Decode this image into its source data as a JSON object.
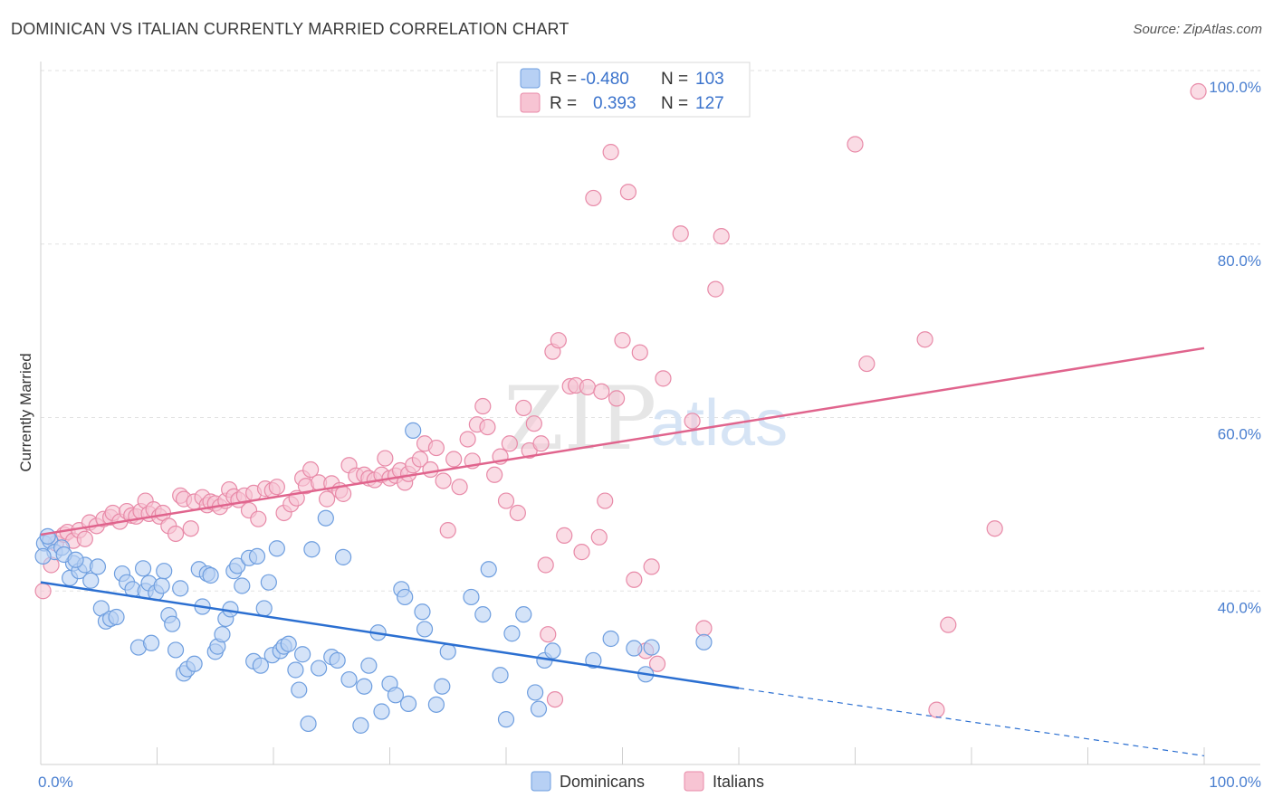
{
  "title": "DOMINICAN VS ITALIAN CURRENTLY MARRIED CORRELATION CHART",
  "source": "Source: ZipAtlas.com",
  "watermark": {
    "zip": "ZIP",
    "atlas": "atlas"
  },
  "colors": {
    "blue_fill": "#b7d0f4",
    "blue_stroke": "#6e9edf",
    "blue_line": "#2b6fd1",
    "pink_fill": "#f7c4d3",
    "pink_stroke": "#e88aa8",
    "pink_line": "#e0648d",
    "grid": "#e2e2e2",
    "tick_label": "#4a7fd0"
  },
  "legend": {
    "rows": [
      {
        "r_label": "R =",
        "r_value": "-0.480",
        "n_label": "N =",
        "n_value": "103"
      },
      {
        "r_label": "R =",
        "r_value": "0.393",
        "n_label": "N =",
        "n_value": "127"
      }
    ]
  },
  "bottom_legend": {
    "series1": "Dominicans",
    "series2": "Italians"
  },
  "chart_data": {
    "type": "scatter",
    "title": "DOMINICAN VS ITALIAN CURRENTLY MARRIED CORRELATION CHART",
    "xlabel": "",
    "ylabel": "Currently Married",
    "xlim": [
      0,
      100
    ],
    "ylim": [
      20,
      100
    ],
    "x_tick_labels": [
      "0.0%",
      "100.0%"
    ],
    "y_ticks": [
      40,
      60,
      80,
      100
    ],
    "y_tick_labels": [
      "40.0%",
      "60.0%",
      "80.0%",
      "100.0%"
    ],
    "grid": true,
    "series": [
      {
        "name": "Dominicans",
        "r": -0.48,
        "n": 103,
        "trend": {
          "x0": 0,
          "y0": 41.0,
          "x1": 60,
          "y1": 28.8,
          "dash_to_x": 100,
          "dash_to_y": 21.0
        },
        "points": [
          [
            0.3,
            45.5
          ],
          [
            0.8,
            45.8
          ],
          [
            1.2,
            44.5
          ],
          [
            1.8,
            45.0
          ],
          [
            2.5,
            41.5
          ],
          [
            2.8,
            43.2
          ],
          [
            3.3,
            42.3
          ],
          [
            3.8,
            43.0
          ],
          [
            4.3,
            41.2
          ],
          [
            4.9,
            42.8
          ],
          [
            5.2,
            38.0
          ],
          [
            5.6,
            36.5
          ],
          [
            6.0,
            36.8
          ],
          [
            6.5,
            37.0
          ],
          [
            7.0,
            42.0
          ],
          [
            7.4,
            41.0
          ],
          [
            7.9,
            40.2
          ],
          [
            8.4,
            33.5
          ],
          [
            8.8,
            42.6
          ],
          [
            9.0,
            40.0
          ],
          [
            9.3,
            40.9
          ],
          [
            9.5,
            34.0
          ],
          [
            9.9,
            39.8
          ],
          [
            10.4,
            40.6
          ],
          [
            10.6,
            42.3
          ],
          [
            11.0,
            37.2
          ],
          [
            11.3,
            36.2
          ],
          [
            11.6,
            33.2
          ],
          [
            12.0,
            40.3
          ],
          [
            12.3,
            30.5
          ],
          [
            12.6,
            31.0
          ],
          [
            13.2,
            31.6
          ],
          [
            13.6,
            42.5
          ],
          [
            13.9,
            38.2
          ],
          [
            14.3,
            42.0
          ],
          [
            14.6,
            41.8
          ],
          [
            15.0,
            33.0
          ],
          [
            15.2,
            33.6
          ],
          [
            15.6,
            35.0
          ],
          [
            15.9,
            36.8
          ],
          [
            16.3,
            37.9
          ],
          [
            16.6,
            42.3
          ],
          [
            16.9,
            42.9
          ],
          [
            17.3,
            40.6
          ],
          [
            17.9,
            43.8
          ],
          [
            18.3,
            31.9
          ],
          [
            18.6,
            44.0
          ],
          [
            18.9,
            31.4
          ],
          [
            19.2,
            38.0
          ],
          [
            19.6,
            41.0
          ],
          [
            19.9,
            32.6
          ],
          [
            20.3,
            44.9
          ],
          [
            20.6,
            33.1
          ],
          [
            20.9,
            33.6
          ],
          [
            21.3,
            33.9
          ],
          [
            21.9,
            30.9
          ],
          [
            22.2,
            28.6
          ],
          [
            22.5,
            32.7
          ],
          [
            23.0,
            24.7
          ],
          [
            23.3,
            44.8
          ],
          [
            23.9,
            31.1
          ],
          [
            24.5,
            48.4
          ],
          [
            25.0,
            32.4
          ],
          [
            25.5,
            32.0
          ],
          [
            26.0,
            43.9
          ],
          [
            26.5,
            29.8
          ],
          [
            27.5,
            24.5
          ],
          [
            27.8,
            29.0
          ],
          [
            28.2,
            31.4
          ],
          [
            29.0,
            35.2
          ],
          [
            29.3,
            26.1
          ],
          [
            30.0,
            29.3
          ],
          [
            30.5,
            28.0
          ],
          [
            31.0,
            40.2
          ],
          [
            31.3,
            39.3
          ],
          [
            31.6,
            27.0
          ],
          [
            32.0,
            58.5
          ],
          [
            32.8,
            37.6
          ],
          [
            33.0,
            35.6
          ],
          [
            34.0,
            26.9
          ],
          [
            34.5,
            29.0
          ],
          [
            35.0,
            33.0
          ],
          [
            37.0,
            39.3
          ],
          [
            38.0,
            37.3
          ],
          [
            38.5,
            42.5
          ],
          [
            39.5,
            30.3
          ],
          [
            40.0,
            25.2
          ],
          [
            40.5,
            35.1
          ],
          [
            41.5,
            37.3
          ],
          [
            42.5,
            28.3
          ],
          [
            42.8,
            26.4
          ],
          [
            43.3,
            32.0
          ],
          [
            44.0,
            33.1
          ],
          [
            47.5,
            32.0
          ],
          [
            49.0,
            34.5
          ],
          [
            51.0,
            33.4
          ],
          [
            52.0,
            30.4
          ],
          [
            52.5,
            33.5
          ],
          [
            57.0,
            34.1
          ],
          [
            0.2,
            44.0
          ],
          [
            0.6,
            46.3
          ],
          [
            2.0,
            44.2
          ],
          [
            3.0,
            43.6
          ]
        ]
      },
      {
        "name": "Italians",
        "r": 0.393,
        "n": 127,
        "trend": {
          "x0": 0,
          "y0": 46.5,
          "x1": 100,
          "y1": 68.0
        },
        "points": [
          [
            0.2,
            40.0
          ],
          [
            0.9,
            43.0
          ],
          [
            1.3,
            45.5
          ],
          [
            2.0,
            46.5
          ],
          [
            2.3,
            46.8
          ],
          [
            2.8,
            45.8
          ],
          [
            3.3,
            47.0
          ],
          [
            3.8,
            46.0
          ],
          [
            4.2,
            47.9
          ],
          [
            4.8,
            47.5
          ],
          [
            5.4,
            48.3
          ],
          [
            6.0,
            48.5
          ],
          [
            6.2,
            49.0
          ],
          [
            6.8,
            48.0
          ],
          [
            7.4,
            49.2
          ],
          [
            7.8,
            48.7
          ],
          [
            8.2,
            48.6
          ],
          [
            8.6,
            49.2
          ],
          [
            9.0,
            50.4
          ],
          [
            9.3,
            48.9
          ],
          [
            9.7,
            49.4
          ],
          [
            10.2,
            48.6
          ],
          [
            10.5,
            49.0
          ],
          [
            11.0,
            47.5
          ],
          [
            11.6,
            46.6
          ],
          [
            12.0,
            51.0
          ],
          [
            12.3,
            50.6
          ],
          [
            12.9,
            47.2
          ],
          [
            13.2,
            50.3
          ],
          [
            13.9,
            50.8
          ],
          [
            14.3,
            49.9
          ],
          [
            14.6,
            50.3
          ],
          [
            15.0,
            50.1
          ],
          [
            15.4,
            49.7
          ],
          [
            15.9,
            50.4
          ],
          [
            16.2,
            51.7
          ],
          [
            16.6,
            50.9
          ],
          [
            17.0,
            50.5
          ],
          [
            17.5,
            51.0
          ],
          [
            17.9,
            49.3
          ],
          [
            18.3,
            51.3
          ],
          [
            18.7,
            48.3
          ],
          [
            19.3,
            51.8
          ],
          [
            19.9,
            51.6
          ],
          [
            20.3,
            52.0
          ],
          [
            20.9,
            49.0
          ],
          [
            21.5,
            50.0
          ],
          [
            22.0,
            50.7
          ],
          [
            22.5,
            53.0
          ],
          [
            22.8,
            52.1
          ],
          [
            23.2,
            54.0
          ],
          [
            23.9,
            52.5
          ],
          [
            24.6,
            50.6
          ],
          [
            25.0,
            52.4
          ],
          [
            25.7,
            51.6
          ],
          [
            26.0,
            51.2
          ],
          [
            26.5,
            54.5
          ],
          [
            27.1,
            53.3
          ],
          [
            27.8,
            53.4
          ],
          [
            28.2,
            53.0
          ],
          [
            28.7,
            52.8
          ],
          [
            29.3,
            53.4
          ],
          [
            29.6,
            55.3
          ],
          [
            30.0,
            53.0
          ],
          [
            30.5,
            53.3
          ],
          [
            30.9,
            53.9
          ],
          [
            31.3,
            52.5
          ],
          [
            31.6,
            53.5
          ],
          [
            32.0,
            54.5
          ],
          [
            32.6,
            55.2
          ],
          [
            33.0,
            57.0
          ],
          [
            33.5,
            54.0
          ],
          [
            34.0,
            56.5
          ],
          [
            34.6,
            52.7
          ],
          [
            35.0,
            47.0
          ],
          [
            35.5,
            55.2
          ],
          [
            36.0,
            52.0
          ],
          [
            36.7,
            57.5
          ],
          [
            37.1,
            55.0
          ],
          [
            37.5,
            59.2
          ],
          [
            38.0,
            61.3
          ],
          [
            38.4,
            58.9
          ],
          [
            39.0,
            53.4
          ],
          [
            39.5,
            55.5
          ],
          [
            40.0,
            50.4
          ],
          [
            40.3,
            57.0
          ],
          [
            41.0,
            49.0
          ],
          [
            41.5,
            61.1
          ],
          [
            42.0,
            56.2
          ],
          [
            42.4,
            59.3
          ],
          [
            43.0,
            57.0
          ],
          [
            43.4,
            43.0
          ],
          [
            44.0,
            67.6
          ],
          [
            44.5,
            68.9
          ],
          [
            45.0,
            46.4
          ],
          [
            45.5,
            63.6
          ],
          [
            46.0,
            63.7
          ],
          [
            46.5,
            44.5
          ],
          [
            47.0,
            63.5
          ],
          [
            47.5,
            85.3
          ],
          [
            48.0,
            46.2
          ],
          [
            48.5,
            50.4
          ],
          [
            49.0,
            90.6
          ],
          [
            49.5,
            62.2
          ],
          [
            50.0,
            68.9
          ],
          [
            50.5,
            86.0
          ],
          [
            51.0,
            41.3
          ],
          [
            51.5,
            67.5
          ],
          [
            52.0,
            33.1
          ],
          [
            52.5,
            42.8
          ],
          [
            53.0,
            31.6
          ],
          [
            53.5,
            64.5
          ],
          [
            55.0,
            81.2
          ],
          [
            56.0,
            59.6
          ],
          [
            57.0,
            35.7
          ],
          [
            58.0,
            74.8
          ],
          [
            58.5,
            80.9
          ],
          [
            70.0,
            91.5
          ],
          [
            71.0,
            66.2
          ],
          [
            76.0,
            69.0
          ],
          [
            78.0,
            36.1
          ],
          [
            82.0,
            47.2
          ],
          [
            77.0,
            26.3
          ],
          [
            99.5,
            97.6
          ],
          [
            43.6,
            35.0
          ],
          [
            44.2,
            27.5
          ],
          [
            48.2,
            63.0
          ]
        ]
      }
    ]
  }
}
